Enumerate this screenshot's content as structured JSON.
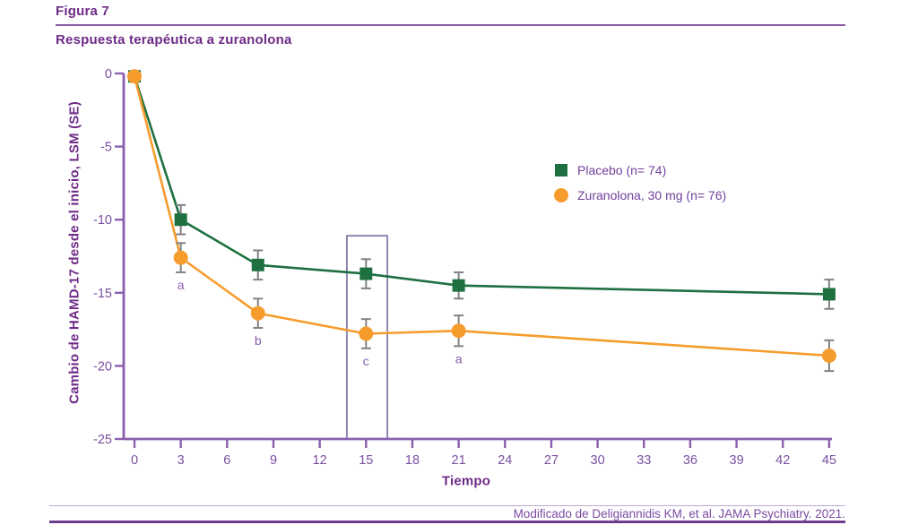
{
  "header": {
    "figure_label": "Figura 7",
    "title": "Respuesta terapéutica a zuranolona"
  },
  "footer": {
    "citation": "Modificado de Deligiannidis KM, et al. JAMA Psychiatry. 2021."
  },
  "colors": {
    "title_purple": "#6e2b87",
    "tick_purple": "#7a4fa0",
    "axis_purple": "#8a5fae",
    "annotation_purple": "#8a5fb0",
    "placebo_green": "#1e7040",
    "zuranolona_orange": "#f69c2d",
    "error_bar_gray": "#828282",
    "box_border": "#8f87ad"
  },
  "chart_data": {
    "type": "line",
    "title": "Respuesta terapéutica a zuranolona",
    "xlabel": "Tiempo",
    "ylabel": "Cambio de HAMD-17 desde el inicio, LSM (SE)",
    "xlim": [
      0,
      45
    ],
    "ylim": [
      -25,
      0
    ],
    "xticks": [
      0,
      3,
      6,
      9,
      12,
      15,
      18,
      21,
      24,
      27,
      30,
      33,
      36,
      39,
      42,
      45
    ],
    "yticks": [
      0,
      -5,
      -10,
      -15,
      -20,
      -25
    ],
    "grid": false,
    "legend_position": "inside upper right",
    "series": [
      {
        "name": "Placebo (n= 74)",
        "marker": "square",
        "color": "#1e7040",
        "x": [
          0,
          3,
          8,
          15,
          21,
          45
        ],
        "y": [
          -0.2,
          -10.0,
          -13.1,
          -13.7,
          -14.5,
          -15.1
        ],
        "se": [
          0,
          1.0,
          1.0,
          1.0,
          0.9,
          1.0
        ]
      },
      {
        "name": "Zuranolona, 30 mg (n= 76)",
        "marker": "circle",
        "color": "#f69c2d",
        "x": [
          0,
          3,
          8,
          15,
          21,
          45
        ],
        "y": [
          -0.2,
          -12.6,
          -16.4,
          -17.8,
          -17.6,
          -19.3
        ],
        "se": [
          0,
          1.0,
          1.0,
          1.0,
          1.05,
          1.05
        ]
      }
    ],
    "point_annotations": [
      {
        "label": "a",
        "series": 1,
        "x": 3
      },
      {
        "label": "b",
        "series": 1,
        "x": 8
      },
      {
        "label": "c",
        "series": 1,
        "x": 15
      },
      {
        "label": "a",
        "series": 1,
        "x": 21
      }
    ],
    "highlight_box": {
      "x_from": 13.76,
      "x_to": 16.38,
      "y_top": -11.1,
      "y_bottom": -25
    }
  }
}
